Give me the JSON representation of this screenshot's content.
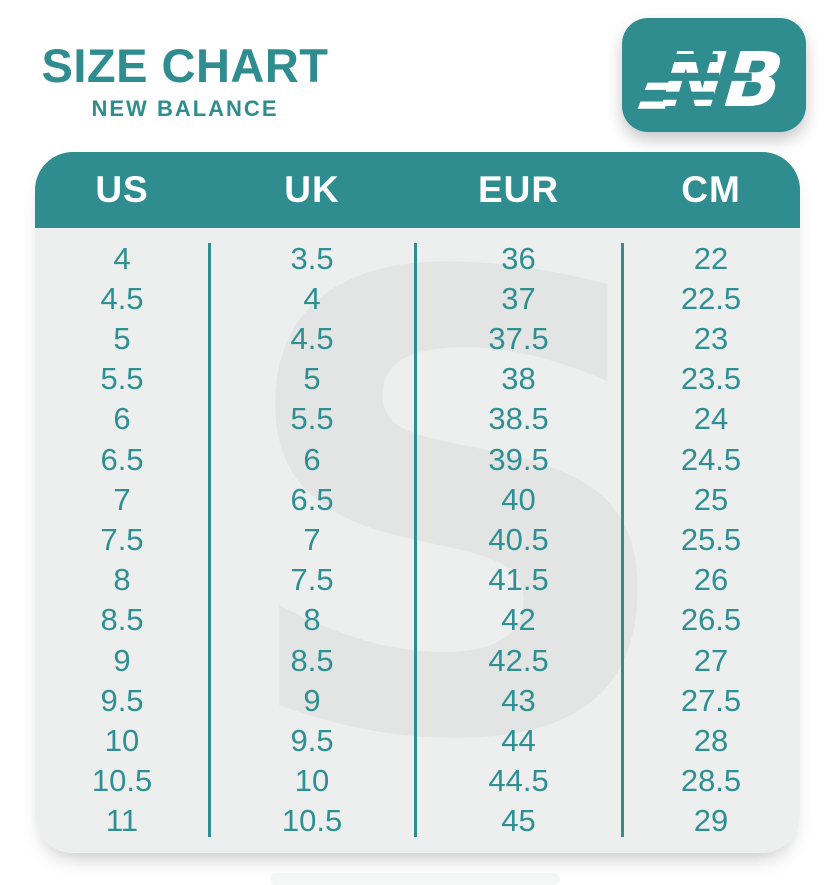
{
  "page": {
    "colors": {
      "accent": "#2f8c8f",
      "text": "#2e9092",
      "table_bg": "#edefee",
      "watermark": "#e3e5e4",
      "header_text": "#ffffff",
      "page_bg": "#ffffff"
    }
  },
  "header": {
    "title": "SIZE CHART",
    "subtitle": "NEW BALANCE",
    "logo": {
      "icon": "new-balance-nb-logo",
      "letters": "NB"
    }
  },
  "watermark": {
    "glyph": "S"
  },
  "chart_data": {
    "type": "table",
    "title": "SIZE CHART",
    "subtitle": "NEW BALANCE",
    "columns": [
      "US",
      "UK",
      "EUR",
      "CM"
    ],
    "rows": [
      [
        "4",
        "3.5",
        "36",
        "22"
      ],
      [
        "4.5",
        "4",
        "37",
        "22.5"
      ],
      [
        "5",
        "4.5",
        "37.5",
        "23"
      ],
      [
        "5.5",
        "5",
        "38",
        "23.5"
      ],
      [
        "6",
        "5.5",
        "38.5",
        "24"
      ],
      [
        "6.5",
        "6",
        "39.5",
        "24.5"
      ],
      [
        "7",
        "6.5",
        "40",
        "25"
      ],
      [
        "7.5",
        "7",
        "40.5",
        "25.5"
      ],
      [
        "8",
        "7.5",
        "41.5",
        "26"
      ],
      [
        "8.5",
        "8",
        "42",
        "26.5"
      ],
      [
        "9",
        "8.5",
        "42.5",
        "27"
      ],
      [
        "9.5",
        "9",
        "43",
        "27.5"
      ],
      [
        "10",
        "9.5",
        "44",
        "28"
      ],
      [
        "10.5",
        "10",
        "44.5",
        "28.5"
      ],
      [
        "11",
        "10.5",
        "45",
        "29"
      ]
    ]
  }
}
